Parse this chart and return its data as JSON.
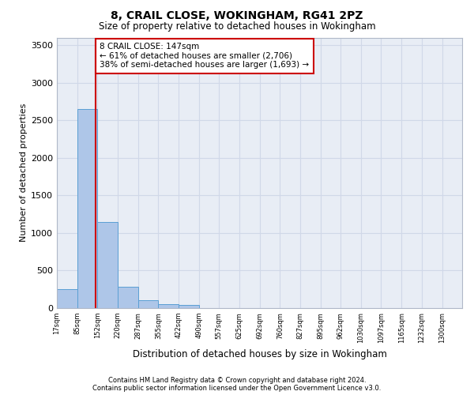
{
  "title1": "8, CRAIL CLOSE, WOKINGHAM, RG41 2PZ",
  "title2": "Size of property relative to detached houses in Wokingham",
  "xlabel": "Distribution of detached houses by size in Wokingham",
  "ylabel": "Number of detached properties",
  "bar_edges": [
    17,
    85,
    152,
    220,
    287,
    355,
    422,
    490,
    557,
    625,
    692,
    760,
    827,
    895,
    962,
    1030,
    1097,
    1165,
    1232,
    1300,
    1367
  ],
  "bar_heights": [
    250,
    2650,
    1150,
    280,
    110,
    55,
    45,
    0,
    0,
    0,
    0,
    0,
    0,
    0,
    0,
    0,
    0,
    0,
    0,
    0
  ],
  "bar_color": "#aec6e8",
  "bar_edge_color": "#5a9fd4",
  "vline_x": 147,
  "vline_color": "#cc0000",
  "annotation_text": "8 CRAIL CLOSE: 147sqm\n← 61% of detached houses are smaller (2,706)\n38% of semi-detached houses are larger (1,693) →",
  "annotation_box_color": "#ffffff",
  "annotation_box_edge_color": "#cc0000",
  "ylim": [
    0,
    3600
  ],
  "yticks": [
    0,
    500,
    1000,
    1500,
    2000,
    2500,
    3000,
    3500
  ],
  "grid_color": "#d0d8e8",
  "background_color": "#e8edf5",
  "fig_background": "#ffffff",
  "footer1": "Contains HM Land Registry data © Crown copyright and database right 2024.",
  "footer2": "Contains public sector information licensed under the Open Government Licence v3.0."
}
